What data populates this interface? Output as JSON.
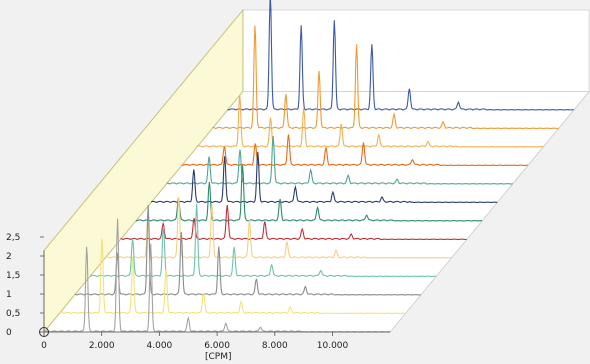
{
  "chart_data": {
    "type": "line",
    "subtype": "3d-waterfall",
    "title": "",
    "xlabel": "[CPM]",
    "ylabel": "",
    "xlim": [
      0,
      12000
    ],
    "ylim": [
      0,
      2.5
    ],
    "x_ticks": [
      0,
      2000,
      4000,
      6000,
      8000,
      10000
    ],
    "x_tick_labels": [
      "0",
      "2.000",
      "4.000",
      "6.000",
      "8.000",
      "10.000"
    ],
    "y_ticks": [
      0,
      0.5,
      1,
      1.5,
      2,
      2.5
    ],
    "y_tick_labels": [
      "0",
      "0,5",
      "1",
      "1,5",
      "2",
      "2,5"
    ],
    "grid": false,
    "legend": "none",
    "colors": {
      "wall": "#fbf9d6",
      "wall_border": "#c8c47a",
      "floor": "#ffffff",
      "background": "#f1f1f1",
      "axis": "#555555"
    },
    "series": [
      {
        "color": "#a3a3a3",
        "peaks": [
          [
            1480,
            2.25
          ],
          [
            2550,
            2.95
          ],
          [
            3700,
            2.3
          ],
          [
            5000,
            0.35
          ],
          [
            6300,
            0.22
          ],
          [
            7500,
            0.12
          ]
        ]
      },
      {
        "color": "#f2e27a",
        "peaks": [
          [
            1480,
            1.95
          ],
          [
            2550,
            1.45
          ],
          [
            3700,
            1.15
          ],
          [
            5000,
            0.55
          ],
          [
            6300,
            0.28
          ],
          [
            8000,
            0.15
          ]
        ]
      },
      {
        "color": "#8a8a8a",
        "peaks": [
          [
            1480,
            1.1
          ],
          [
            2550,
            2.35
          ],
          [
            3700,
            1.65
          ],
          [
            5000,
            1.25
          ],
          [
            6300,
            0.4
          ],
          [
            8000,
            0.2
          ]
        ]
      },
      {
        "color": "#6fc2b0",
        "peaks": [
          [
            1480,
            1.0
          ],
          [
            2550,
            1.3
          ],
          [
            3700,
            1.9
          ],
          [
            5000,
            0.75
          ],
          [
            6300,
            0.3
          ],
          [
            8000,
            0.15
          ]
        ]
      },
      {
        "color": "#f5d080",
        "peaks": [
          [
            1480,
            0.9
          ],
          [
            2550,
            1.6
          ],
          [
            3700,
            1.4
          ],
          [
            5000,
            1.0
          ],
          [
            6300,
            0.4
          ],
          [
            8000,
            0.18
          ]
        ]
      },
      {
        "color": "#c0303a",
        "peaks": [
          [
            1480,
            0.4
          ],
          [
            2550,
            0.55
          ],
          [
            3700,
            0.9
          ],
          [
            5000,
            0.45
          ],
          [
            6300,
            0.25
          ],
          [
            8000,
            0.12
          ]
        ]
      },
      {
        "color": "#2e8a6a",
        "peaks": [
          [
            1480,
            0.6
          ],
          [
            2550,
            1.0
          ],
          [
            3700,
            1.45
          ],
          [
            5000,
            0.55
          ],
          [
            6300,
            0.35
          ],
          [
            8000,
            0.15
          ]
        ]
      },
      {
        "color": "#283c70",
        "peaks": [
          [
            1480,
            0.85
          ],
          [
            2550,
            1.2
          ],
          [
            3700,
            1.3
          ],
          [
            5000,
            0.4
          ],
          [
            6300,
            0.25
          ],
          [
            8000,
            0.12
          ]
        ]
      },
      {
        "color": "#4aa894",
        "peaks": [
          [
            1480,
            0.7
          ],
          [
            2550,
            0.9
          ],
          [
            3700,
            1.25
          ],
          [
            5000,
            0.35
          ],
          [
            6300,
            0.2
          ],
          [
            8000,
            0.1
          ]
        ]
      },
      {
        "color": "#e86a1a",
        "peaks": [
          [
            1480,
            0.5
          ],
          [
            2550,
            0.55
          ],
          [
            3700,
            0.8
          ],
          [
            5000,
            0.45
          ],
          [
            6300,
            0.6
          ],
          [
            8000,
            0.15
          ]
        ]
      },
      {
        "color": "#f0b050",
        "peaks": [
          [
            1480,
            1.35
          ],
          [
            2550,
            0.75
          ],
          [
            3700,
            1.0
          ],
          [
            5000,
            0.6
          ],
          [
            6300,
            0.3
          ],
          [
            8000,
            0.12
          ]
        ]
      },
      {
        "color": "#f09a30",
        "peaks": [
          [
            1480,
            2.7
          ],
          [
            2550,
            0.9
          ],
          [
            3700,
            1.5
          ],
          [
            5000,
            2.2
          ],
          [
            6300,
            0.35
          ],
          [
            8000,
            0.15
          ]
        ]
      },
      {
        "color": "#3e58a8",
        "peaks": [
          [
            1480,
            3.05
          ],
          [
            2550,
            2.2
          ],
          [
            3700,
            2.35
          ],
          [
            5000,
            1.7
          ],
          [
            6300,
            0.55
          ],
          [
            8000,
            0.2
          ]
        ]
      }
    ]
  }
}
